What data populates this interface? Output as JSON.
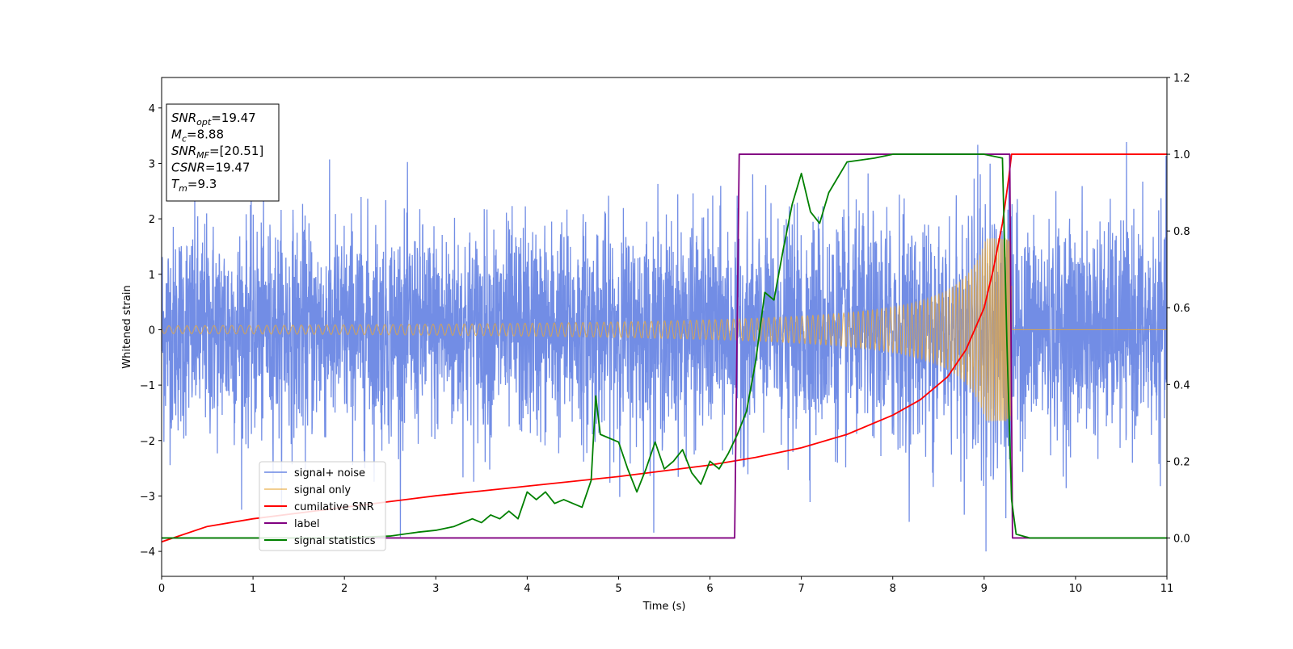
{
  "chart_data": {
    "type": "line",
    "xlabel": "Time (s)",
    "ylabel": "Whitened strain",
    "xlim": [
      0,
      11
    ],
    "ylim": [
      -4.45,
      4.55
    ],
    "y2lim": [
      -0.1,
      1.2
    ],
    "x_ticks": [
      "0",
      "1",
      "2",
      "3",
      "4",
      "5",
      "6",
      "7",
      "8",
      "9",
      "10",
      "11"
    ],
    "y_ticks": [
      "−4",
      "−3",
      "−2",
      "−1",
      "0",
      "1",
      "2",
      "3",
      "4"
    ],
    "y2_ticks": [
      "0.0",
      "0.2",
      "0.4",
      "0.6",
      "0.8",
      "1.0",
      "1.2"
    ],
    "grid": false,
    "legend_position": "lower-left",
    "annotation": {
      "lines": [
        {
          "main": "SNR",
          "sub": "opt",
          "value": "=19.47"
        },
        {
          "main": "M",
          "sub": "c",
          "value": "=8.88"
        },
        {
          "main": "SNR",
          "sub": "MF",
          "value": "=[20.51]"
        },
        {
          "main": "CSNR",
          "sub": "",
          "value": "=19.47"
        },
        {
          "main": "T",
          "sub": "m",
          "value": "=9.3"
        }
      ]
    },
    "series": [
      {
        "name": "signal+ noise",
        "axis": "left",
        "color": "#6a87e4",
        "description_kind": "noise",
        "sample_rate": 400,
        "duration": 11,
        "typical_amplitude": 1.0,
        "range": [
          -4.0,
          4.15
        ]
      },
      {
        "name": "signal only",
        "axis": "left",
        "color": "#e8a83a",
        "description_kind": "chirp",
        "t_merger": 9.3,
        "amp_start": 0.07,
        "amp_peak": 1.65,
        "freq_start": 10,
        "freq_peak": 60
      },
      {
        "name": "cumilative SNR",
        "axis": "right",
        "color": "#ff0000",
        "points": [
          [
            0,
            -0.01
          ],
          [
            0.5,
            0.03
          ],
          [
            1,
            0.05
          ],
          [
            2,
            0.08
          ],
          [
            3,
            0.11
          ],
          [
            4,
            0.135
          ],
          [
            5,
            0.16
          ],
          [
            5.5,
            0.175
          ],
          [
            6,
            0.19
          ],
          [
            6.5,
            0.21
          ],
          [
            7,
            0.235
          ],
          [
            7.5,
            0.27
          ],
          [
            8,
            0.32
          ],
          [
            8.3,
            0.36
          ],
          [
            8.6,
            0.42
          ],
          [
            8.8,
            0.49
          ],
          [
            9.0,
            0.6
          ],
          [
            9.1,
            0.7
          ],
          [
            9.2,
            0.82
          ],
          [
            9.27,
            0.94
          ],
          [
            9.3,
            1.0
          ],
          [
            11,
            1.0
          ]
        ]
      },
      {
        "name": "label",
        "axis": "right",
        "color": "#800080",
        "points": [
          [
            0,
            0.0
          ],
          [
            6.27,
            0.0
          ],
          [
            6.32,
            1.0
          ],
          [
            9.28,
            1.0
          ],
          [
            9.31,
            0.0
          ],
          [
            11,
            0.0
          ]
        ]
      },
      {
        "name": "signal statistics",
        "axis": "right",
        "color": "#008000",
        "points": [
          [
            0,
            0.0
          ],
          [
            1,
            0.0
          ],
          [
            2,
            0.0
          ],
          [
            2.5,
            0.005
          ],
          [
            2.8,
            0.015
          ],
          [
            3.0,
            0.02
          ],
          [
            3.2,
            0.03
          ],
          [
            3.4,
            0.05
          ],
          [
            3.5,
            0.04
          ],
          [
            3.6,
            0.06
          ],
          [
            3.7,
            0.05
          ],
          [
            3.8,
            0.07
          ],
          [
            3.9,
            0.05
          ],
          [
            4.0,
            0.12
          ],
          [
            4.1,
            0.1
          ],
          [
            4.2,
            0.12
          ],
          [
            4.3,
            0.09
          ],
          [
            4.4,
            0.1
          ],
          [
            4.5,
            0.09
          ],
          [
            4.6,
            0.08
          ],
          [
            4.7,
            0.15
          ],
          [
            4.75,
            0.37
          ],
          [
            4.8,
            0.27
          ],
          [
            4.9,
            0.26
          ],
          [
            5.0,
            0.25
          ],
          [
            5.1,
            0.18
          ],
          [
            5.2,
            0.12
          ],
          [
            5.3,
            0.18
          ],
          [
            5.4,
            0.25
          ],
          [
            5.5,
            0.18
          ],
          [
            5.6,
            0.2
          ],
          [
            5.7,
            0.23
          ],
          [
            5.8,
            0.17
          ],
          [
            5.9,
            0.14
          ],
          [
            6.0,
            0.2
          ],
          [
            6.1,
            0.18
          ],
          [
            6.2,
            0.22
          ],
          [
            6.3,
            0.27
          ],
          [
            6.4,
            0.33
          ],
          [
            6.5,
            0.46
          ],
          [
            6.6,
            0.64
          ],
          [
            6.7,
            0.62
          ],
          [
            6.8,
            0.75
          ],
          [
            6.9,
            0.87
          ],
          [
            7.0,
            0.95
          ],
          [
            7.1,
            0.85
          ],
          [
            7.2,
            0.82
          ],
          [
            7.3,
            0.9
          ],
          [
            7.5,
            0.98
          ],
          [
            7.8,
            0.99
          ],
          [
            8.0,
            1.0
          ],
          [
            8.5,
            1.0
          ],
          [
            9.0,
            1.0
          ],
          [
            9.2,
            0.99
          ],
          [
            9.25,
            0.5
          ],
          [
            9.3,
            0.1
          ],
          [
            9.35,
            0.01
          ],
          [
            9.5,
            0.0
          ],
          [
            11,
            0.0
          ]
        ]
      }
    ]
  }
}
